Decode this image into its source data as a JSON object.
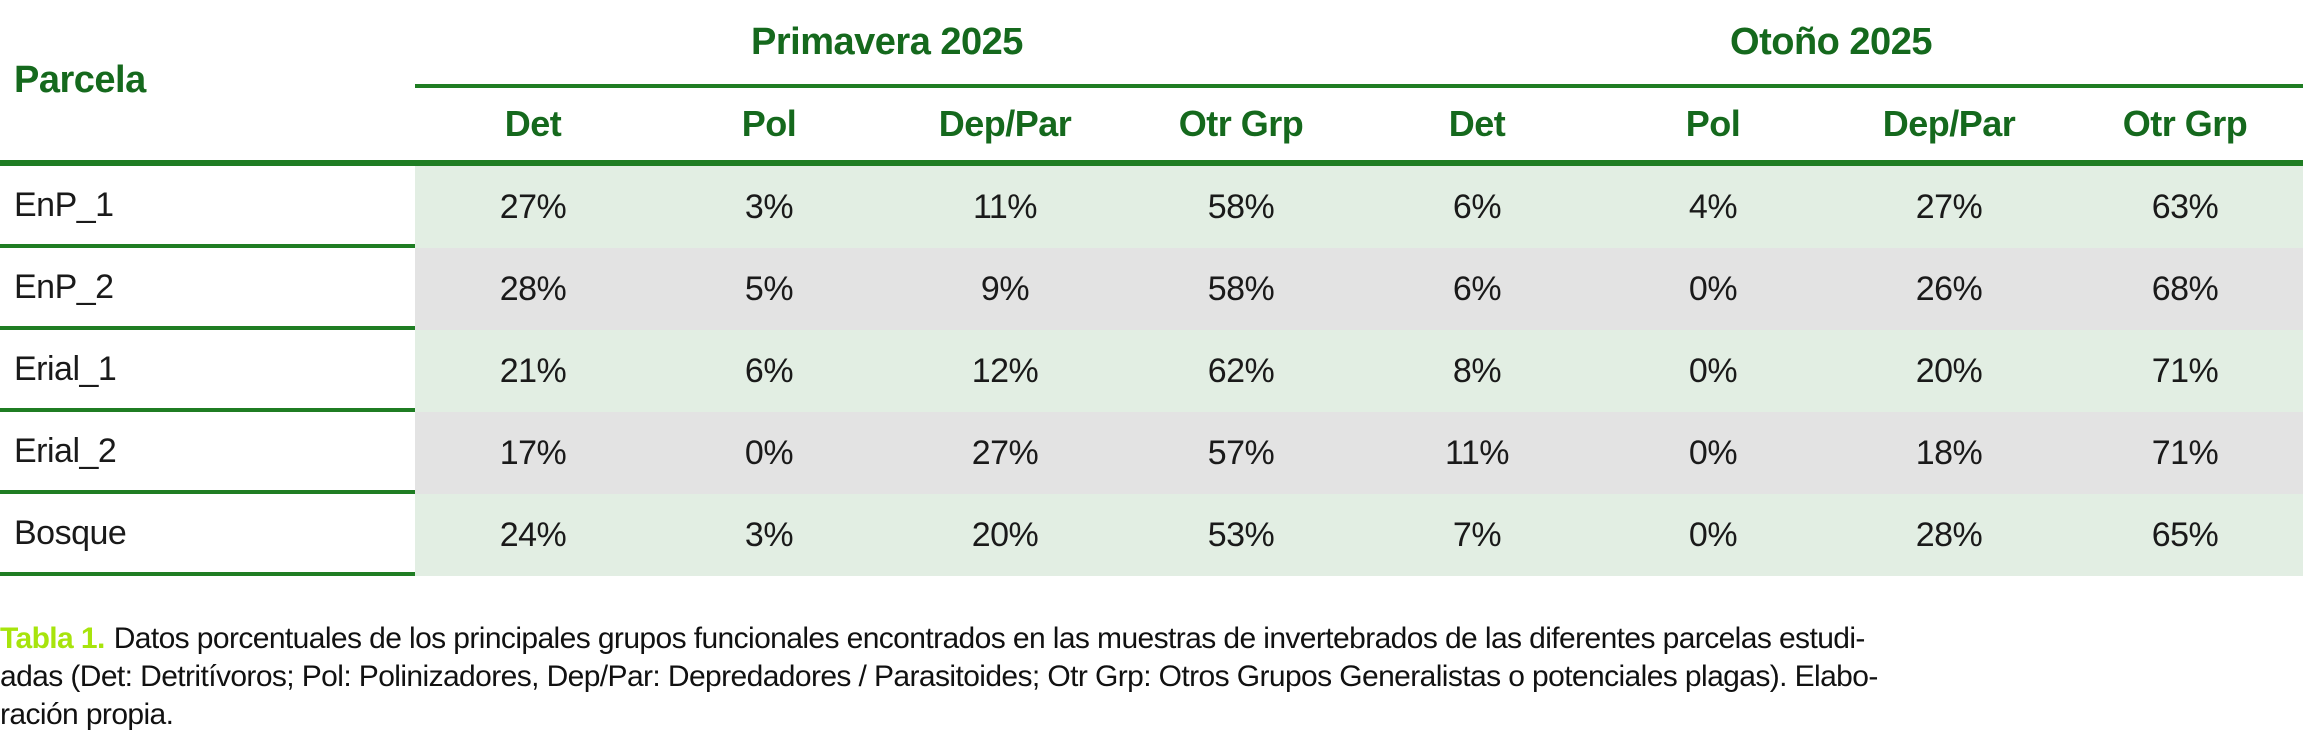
{
  "colors": {
    "text_green": "#15691d",
    "line_green": "#1f7d23",
    "row_green_bg": "#e2eee3",
    "row_gray_bg": "#e3e3e3",
    "caption_label_lime": "#a7e40c"
  },
  "table": {
    "corner_header": "Parcela",
    "groups": [
      {
        "label": "Primavera 2025",
        "columns": [
          "Det",
          "Pol",
          "Dep/Par",
          "Otr Grp"
        ]
      },
      {
        "label": "Otoño 2025",
        "columns": [
          "Det",
          "Pol",
          "Dep/Par",
          "Otr Grp"
        ]
      }
    ],
    "rows": [
      {
        "parcela": "EnP_1",
        "values": [
          "27%",
          "3%",
          "11%",
          "58%",
          "6%",
          "4%",
          "27%",
          "63%"
        ]
      },
      {
        "parcela": "EnP_2",
        "values": [
          "28%",
          "5%",
          "9%",
          "58%",
          "6%",
          "0%",
          "26%",
          "68%"
        ]
      },
      {
        "parcela": "Erial_1",
        "values": [
          "21%",
          "6%",
          "12%",
          "62%",
          "8%",
          "0%",
          "20%",
          "71%"
        ]
      },
      {
        "parcela": "Erial_2",
        "values": [
          "17%",
          "0%",
          "27%",
          "57%",
          "11%",
          "0%",
          "18%",
          "71%"
        ]
      },
      {
        "parcela": "Bosque",
        "values": [
          "24%",
          "3%",
          "20%",
          "53%",
          "7%",
          "0%",
          "28%",
          "65%"
        ]
      }
    ]
  },
  "caption": {
    "label": "Tabla 1.",
    "lines": [
      "Datos porcentuales de los principales grupos funcionales encontrados en las muestras de invertebrados de las diferentes parcelas estudi-",
      "adas (Det: Detritívoros; Pol: Polinizadores, Dep/Par: Depredadores / Parasitoides; Otr Grp: Otros Grupos Generalistas o potenciales plagas). Elabo-",
      "ración propia."
    ]
  }
}
